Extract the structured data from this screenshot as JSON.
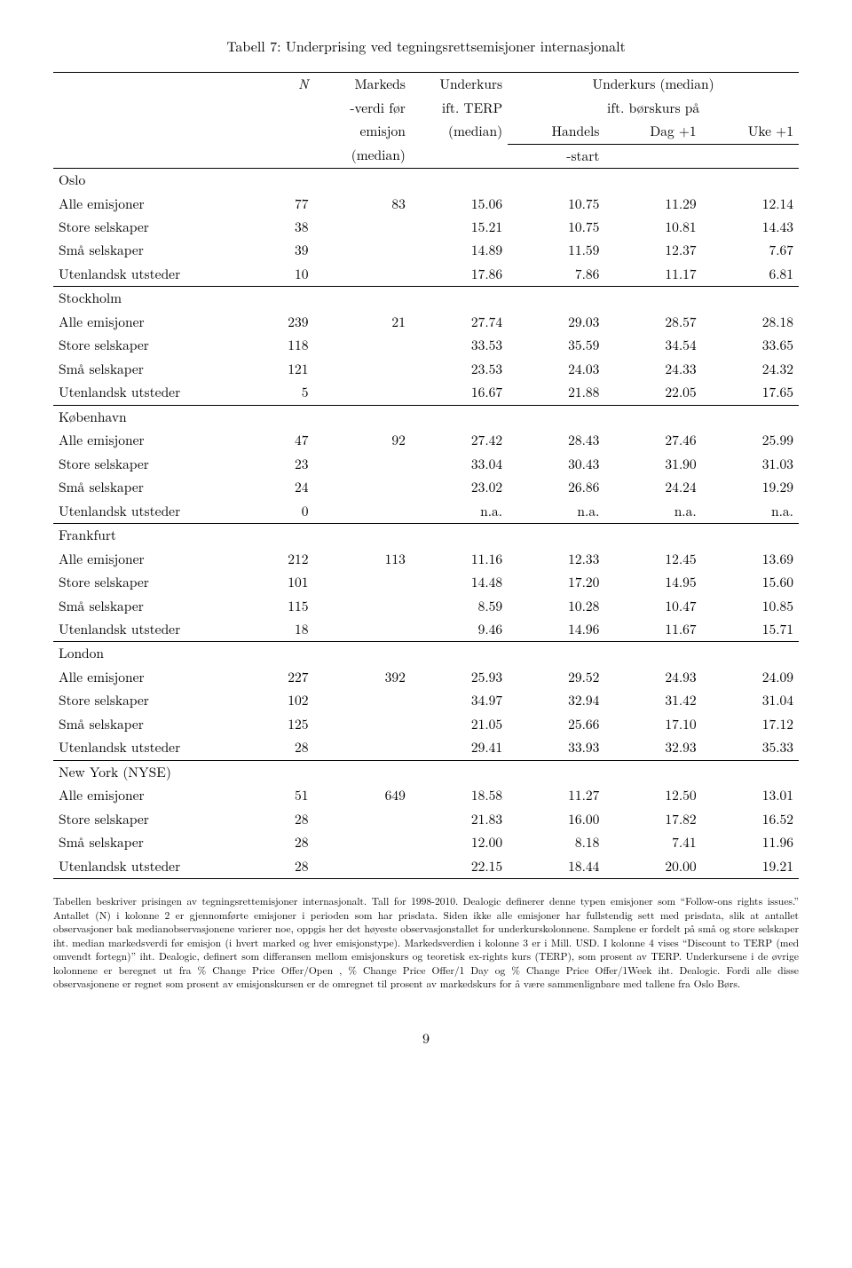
{
  "title": "Tabell 7: Underprising ved tegningsrettsemisjoner internasjonalt",
  "header": {
    "N": "N",
    "markeds1": "Markeds",
    "markeds2": "-verdi før",
    "markeds3": "emisjon",
    "markeds4": "(median)",
    "under1": "Underkurs",
    "under2": "ift. TERP",
    "under3": "(median)",
    "median_group": "Underkurs (median)",
    "median_sub": "ift. børskurs på",
    "h_handels1": "Handels",
    "h_handels2": "-start",
    "h_dag1": "Dag +1",
    "h_uke1": "Uke +1"
  },
  "groups": [
    {
      "name": "Oslo",
      "rows": [
        {
          "lab": "Alle emisjoner",
          "n": "77",
          "m": "83",
          "t": "15.06",
          "h": "10.75",
          "d": "11.29",
          "u": "12.14"
        },
        {
          "lab": "Store selskaper",
          "n": "38",
          "m": "",
          "t": "15.21",
          "h": "10.75",
          "d": "10.81",
          "u": "14.43"
        },
        {
          "lab": "Små selskaper",
          "n": "39",
          "m": "",
          "t": "14.89",
          "h": "11.59",
          "d": "12.37",
          "u": "7.67"
        },
        {
          "lab": "Utenlandsk utsteder",
          "n": "10",
          "m": "",
          "t": "17.86",
          "h": "7.86",
          "d": "11.17",
          "u": "6.81"
        }
      ]
    },
    {
      "name": "Stockholm",
      "rows": [
        {
          "lab": "Alle emisjoner",
          "n": "239",
          "m": "21",
          "t": "27.74",
          "h": "29.03",
          "d": "28.57",
          "u": "28.18"
        },
        {
          "lab": "Store selskaper",
          "n": "118",
          "m": "",
          "t": "33.53",
          "h": "35.59",
          "d": "34.54",
          "u": "33.65"
        },
        {
          "lab": "Små selskaper",
          "n": "121",
          "m": "",
          "t": "23.53",
          "h": "24.03",
          "d": "24.33",
          "u": "24.32"
        },
        {
          "lab": "Utenlandsk utsteder",
          "n": "5",
          "m": "",
          "t": "16.67",
          "h": "21.88",
          "d": "22.05",
          "u": "17.65"
        }
      ]
    },
    {
      "name": "København",
      "rows": [
        {
          "lab": "Alle emisjoner",
          "n": "47",
          "m": "92",
          "t": "27.42",
          "h": "28.43",
          "d": "27.46",
          "u": "25.99"
        },
        {
          "lab": "Store selskaper",
          "n": "23",
          "m": "",
          "t": "33.04",
          "h": "30.43",
          "d": "31.90",
          "u": "31.03"
        },
        {
          "lab": "Små selskaper",
          "n": "24",
          "m": "",
          "t": "23.02",
          "h": "26.86",
          "d": "24.24",
          "u": "19.29"
        },
        {
          "lab": "Utenlandsk utsteder",
          "n": "0",
          "m": "",
          "t": "n.a.",
          "h": "n.a.",
          "d": "n.a.",
          "u": "n.a."
        }
      ]
    },
    {
      "name": "Frankfurt",
      "rows": [
        {
          "lab": "Alle emisjoner",
          "n": "212",
          "m": "113",
          "t": "11.16",
          "h": "12.33",
          "d": "12.45",
          "u": "13.69"
        },
        {
          "lab": "Store selskaper",
          "n": "101",
          "m": "",
          "t": "14.48",
          "h": "17.20",
          "d": "14.95",
          "u": "15.60"
        },
        {
          "lab": "Små selskaper",
          "n": "115",
          "m": "",
          "t": "8.59",
          "h": "10.28",
          "d": "10.47",
          "u": "10.85"
        },
        {
          "lab": "Utenlandsk utsteder",
          "n": "18",
          "m": "",
          "t": "9.46",
          "h": "14.96",
          "d": "11.67",
          "u": "15.71"
        }
      ]
    },
    {
      "name": "London",
      "rows": [
        {
          "lab": "Alle emisjoner",
          "n": "227",
          "m": "392",
          "t": "25.93",
          "h": "29.52",
          "d": "24.93",
          "u": "24.09"
        },
        {
          "lab": "Store selskaper",
          "n": "102",
          "m": "",
          "t": "34.97",
          "h": "32.94",
          "d": "31.42",
          "u": "31.04"
        },
        {
          "lab": "Små selskaper",
          "n": "125",
          "m": "",
          "t": "21.05",
          "h": "25.66",
          "d": "17.10",
          "u": "17.12"
        },
        {
          "lab": "Utenlandsk utsteder",
          "n": "28",
          "m": "",
          "t": "29.41",
          "h": "33.93",
          "d": "32.93",
          "u": "35.33"
        }
      ]
    },
    {
      "name": "New York (NYSE)",
      "rows": [
        {
          "lab": "Alle emisjoner",
          "n": "51",
          "m": "649",
          "t": "18.58",
          "h": "11.27",
          "d": "12.50",
          "u": "13.01"
        },
        {
          "lab": "Store selskaper",
          "n": "28",
          "m": "",
          "t": "21.83",
          "h": "16.00",
          "d": "17.82",
          "u": "16.52"
        },
        {
          "lab": "Små selskaper",
          "n": "28",
          "m": "",
          "t": "12.00",
          "h": "8.18",
          "d": "7.41",
          "u": "11.96"
        },
        {
          "lab": "Utenlandsk utsteder",
          "n": "28",
          "m": "",
          "t": "22.15",
          "h": "18.44",
          "d": "20.00",
          "u": "19.21"
        }
      ]
    }
  ],
  "footnote": "Tabellen beskriver prisingen av tegningsrettemisjoner internasjonalt. Tall for 1998-2010. Dealogic definerer denne typen emisjoner som “Follow-ons rights issues.” Antallet (N) i kolonne 2 er gjennomførte emisjoner i perioden som har prisdata. Siden ikke alle emisjoner har fullstendig sett med prisdata, slik at antallet observasjoner bak medianobservasjonene varierer noe, oppgis her det høyeste observasjonstallet for underkurskolonnene. Samplene er fordelt på små og store selskaper iht. median markedsverdi før emisjon (i hvert marked og hver emisjonstype). Markedsverdien i kolonne 3 er i Mill. USD. I kolonne 4 vises “Discount to TERP (med omvendt fortegn)” iht. Dealogic, definert som differansen mellom emisjonskurs og teoretisk ex-rights kurs (TERP), som prosent av TERP. Underkursene i de øvrige kolonnene er beregnet ut fra % Change Price Offer/Open , % Change Price Offer/1 Day og % Change Price Offer/1Week iht. Dealogic. Fordi alle disse observasjonene er regnet som prosent av emisjonskursen er de omregnet til prosent av markedskurs for å være sammenlignbare med tallene fra Oslo Børs.",
  "pagenum": "9"
}
